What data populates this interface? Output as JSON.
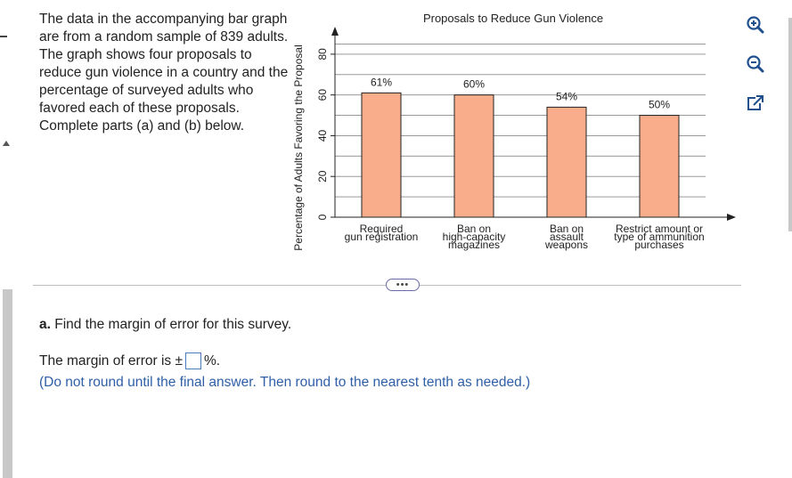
{
  "problem": {
    "text": "The data in the accompanying bar graph are from a random sample of 839 adults. The graph shows four proposals to reduce gun violence in a country and the percentage of surveyed adults who favored each of these proposals. Complete parts (a) and (b) below."
  },
  "chart_data": {
    "type": "bar",
    "title": "Proposals to Reduce Gun Violence",
    "ylabel": "Percentage of Adults Favoring the Proposal",
    "xlabel": "",
    "ylim": [
      0,
      90
    ],
    "yticks": [
      0,
      20,
      40,
      60,
      80
    ],
    "grid": true,
    "categories": [
      [
        "Required",
        "gun registration"
      ],
      [
        "Ban on",
        "high-capacity",
        "magazines"
      ],
      [
        "Ban on",
        "assault",
        "weapons"
      ],
      [
        "Restrict amount or",
        "type of ammunition",
        "purchases"
      ]
    ],
    "values": [
      61,
      60,
      54,
      50
    ],
    "data_labels": [
      "61%",
      "60%",
      "54%",
      "50%"
    ],
    "bar_color": "#f9ad8a",
    "bar_edge": "#222222"
  },
  "toolbar": {
    "zoom_in_icon": "zoom-in-icon",
    "zoom_out_icon": "zoom-out-icon",
    "popout_icon": "popout-icon"
  },
  "more_button": {
    "label": "•••"
  },
  "question_a": {
    "part": "a.",
    "text": " Find the margin of error for this survey."
  },
  "answer": {
    "prefix": "The margin of error is ±",
    "value": "",
    "suffix": "%."
  },
  "instruction": "(Do not round until the final answer. Then round to the nearest tenth as needed.)",
  "colors": {
    "link_blue": "#2f5fa8",
    "bar": "#f9ad8a"
  }
}
